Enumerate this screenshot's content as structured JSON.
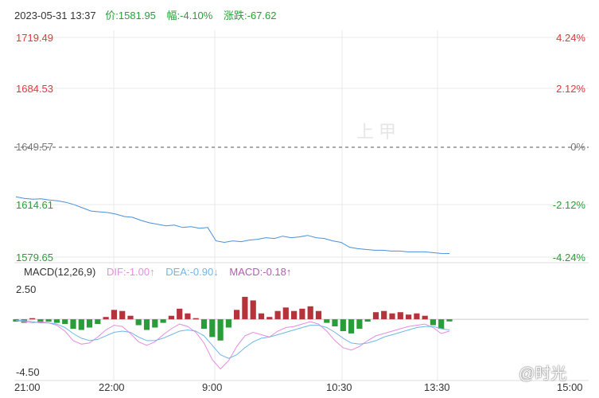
{
  "header": {
    "datetime": "2023-05-31 13:37",
    "price_label": "价:",
    "price": "1581.95",
    "change_pct_label": "幅:",
    "change_pct": "-4.10%",
    "change_label": "涨跌:",
    "change": "-67.62"
  },
  "colors": {
    "up": "#e0383e",
    "down": "#2a9d3a",
    "price_line": "#4a90d9",
    "dif": "#e78be0",
    "dea": "#6fb6e6",
    "macd_label": "#b05db0",
    "grid": "#e8e8e8"
  },
  "watermark": "上甲",
  "watermark2": "@时光",
  "chart_data": [
    {
      "type": "line",
      "y_ticks_left": [
        "1719.49",
        "1684.53",
        "1649.57",
        "1614.61",
        "1579.65"
      ],
      "y_ticks_right": [
        "4.24%",
        "2.12%",
        "0%",
        "-2.12%",
        "-4.24%"
      ],
      "ylim": [
        1579.65,
        1719.49
      ],
      "reference": 1649.57,
      "x_ticks": [
        "21:00",
        "22:00",
        "9:00",
        "10:30",
        "13:30",
        "15:00"
      ],
      "series": [
        {
          "values": [
            1618.0,
            1617.0,
            1616.5,
            1616.8,
            1616.0,
            1615.5,
            1614.5,
            1613.0,
            1611.0,
            1609.0,
            1608.5,
            1608.0,
            1607.0,
            1605.5,
            1605.0,
            1603.0,
            1601.5,
            1600.5,
            1599.5,
            1600.0,
            1598.5,
            1599.0,
            1598.0,
            1598.5,
            1590.0,
            1589.0,
            1590.0,
            1589.5,
            1590.5,
            1591.0,
            1592.0,
            1591.5,
            1593.0,
            1592.0,
            1592.5,
            1593.5,
            1592.0,
            1591.5,
            1590.0,
            1589.0,
            1586.0,
            1585.0,
            1584.5,
            1584.0,
            1584.0,
            1583.5,
            1583.5,
            1583.0,
            1583.0,
            1583.0,
            1582.5,
            1582.0,
            1581.95
          ]
        }
      ]
    },
    {
      "type": "bar",
      "title": "MACD(12,26,9)",
      "ylim": [
        -4.5,
        2.5
      ],
      "y_ticks": [
        "2.50",
        "-4.50"
      ],
      "legend": {
        "dif": "DIF:-1.00↑",
        "dea": "DEA:-0.90↓",
        "macd": "MACD:-0.18↑"
      },
      "macd": [
        -0.2,
        -0.3,
        0.1,
        -0.3,
        -0.2,
        -0.3,
        -0.4,
        -0.8,
        -0.9,
        -0.7,
        -0.4,
        0.2,
        0.8,
        0.7,
        0.3,
        -0.5,
        -0.9,
        -0.7,
        -0.3,
        0.3,
        0.9,
        0.5,
        0.1,
        -0.8,
        -1.5,
        -1.8,
        -0.7,
        0.8,
        1.9,
        1.6,
        0.5,
        0.2,
        0.7,
        1.0,
        0.7,
        0.9,
        1.1,
        0.7,
        -0.3,
        -0.6,
        -1.0,
        -1.2,
        -0.8,
        -0.2,
        0.6,
        0.7,
        0.5,
        0.6,
        0.4,
        0.5,
        0.3,
        -0.5,
        -0.8,
        -0.18
      ],
      "dif": [
        -0.1,
        -0.2,
        -0.3,
        -0.2,
        -0.3,
        -0.5,
        -1.0,
        -1.8,
        -2.1,
        -2.0,
        -1.5,
        -0.9,
        -0.5,
        -0.6,
        -1.2,
        -1.9,
        -2.2,
        -1.9,
        -1.3,
        -0.8,
        -0.4,
        -0.6,
        -1.1,
        -2.0,
        -3.4,
        -4.2,
        -3.5,
        -2.3,
        -1.4,
        -1.1,
        -1.3,
        -1.5,
        -1.0,
        -0.7,
        -0.6,
        -0.4,
        -0.2,
        -0.4,
        -1.0,
        -1.8,
        -2.4,
        -2.6,
        -2.3,
        -1.8,
        -1.4,
        -1.2,
        -1.0,
        -0.8,
        -0.6,
        -0.5,
        -0.4,
        -0.7,
        -1.2,
        -1.0
      ],
      "dea": [
        -0.1,
        -0.1,
        -0.2,
        -0.3,
        -0.3,
        -0.4,
        -0.7,
        -1.2,
        -1.6,
        -1.8,
        -1.7,
        -1.4,
        -1.1,
        -1.0,
        -1.1,
        -1.5,
        -1.8,
        -1.8,
        -1.6,
        -1.3,
        -1.0,
        -0.9,
        -1.0,
        -1.4,
        -2.2,
        -3.0,
        -3.3,
        -3.0,
        -2.4,
        -1.9,
        -1.6,
        -1.5,
        -1.3,
        -1.1,
        -0.9,
        -0.7,
        -0.5,
        -0.5,
        -0.7,
        -1.1,
        -1.6,
        -2.0,
        -2.1,
        -2.0,
        -1.8,
        -1.5,
        -1.3,
        -1.1,
        -0.9,
        -0.7,
        -0.6,
        -0.6,
        -0.8,
        -0.9
      ]
    }
  ]
}
